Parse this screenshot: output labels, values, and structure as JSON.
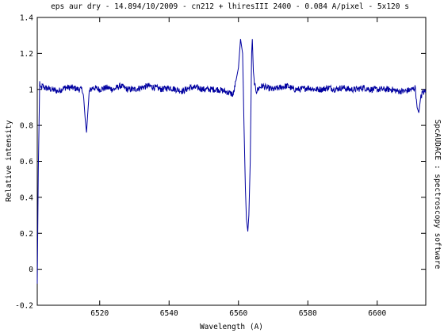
{
  "chart_data": {
    "type": "line",
    "title": "eps aur dry - 14.894/10/2009 - cn212 + lhiresIII 2400 - 0.084 A/pixel - 5x120 s",
    "xlabel": "Wavelength (A)",
    "ylabel": "Relative intensity",
    "right_label": "SpcAUDACE : spectroscopy software",
    "xlim": [
      6502,
      6614
    ],
    "ylim": [
      -0.2,
      1.4
    ],
    "x_ticks": [
      6520,
      6540,
      6560,
      6580,
      6600
    ],
    "x_tick_labels": [
      "6520",
      "6540",
      "6560",
      "6580",
      "6600"
    ],
    "y_ticks": [
      -0.2,
      0,
      0.2,
      0.4,
      0.6,
      0.8,
      1,
      1.2,
      1.4
    ],
    "y_tick_labels": [
      "-0.2",
      "0",
      "0.2",
      "0.4",
      "0.6",
      "0.8",
      "1",
      "1.2",
      "1.4"
    ],
    "grid": false,
    "line_color": "#0000a0",
    "series": [
      {
        "name": "",
        "x": [
          6502.0,
          6502.3,
          6502.7,
          6503.0,
          6503.5,
          6504.0,
          6506.0,
          6508.0,
          6510.0,
          6512.0,
          6514.0,
          6515.0,
          6515.4,
          6515.8,
          6516.2,
          6516.6,
          6517.0,
          6517.5,
          6518.0,
          6520.0,
          6522.0,
          6524.0,
          6526.0,
          6528.0,
          6530.0,
          6532.0,
          6534.0,
          6536.0,
          6538.0,
          6540.0,
          6542.0,
          6544.0,
          6546.0,
          6548.0,
          6550.0,
          6552.0,
          6554.0,
          6556.0,
          6557.5,
          6558.5,
          6559.3,
          6560.0,
          6560.6,
          6561.2,
          6561.6,
          6562.0,
          6562.3,
          6562.7,
          6563.0,
          6563.4,
          6563.8,
          6564.0,
          6564.3,
          6564.7,
          6565.2,
          6566.0,
          6567.0,
          6568.0,
          6570.0,
          6572.0,
          6574.0,
          6576.0,
          6578.0,
          6580.0,
          6582.0,
          6584.0,
          6586.0,
          6588.0,
          6590.0,
          6592.0,
          6594.0,
          6596.0,
          6598.0,
          6600.0,
          6602.0,
          6604.0,
          6606.0,
          6608.0,
          6610.0,
          6611.0,
          6611.5,
          6612.0,
          6612.5,
          6613.0,
          6614.0
        ],
        "y": [
          -0.08,
          0.55,
          1.04,
          1.0,
          1.02,
          1.01,
          1.0,
          0.99,
          1.01,
          1.01,
          1.0,
          1.0,
          0.95,
          0.84,
          0.76,
          0.88,
          0.99,
          1.0,
          1.01,
          1.0,
          1.01,
          1.0,
          1.02,
          1.0,
          1.0,
          1.01,
          1.02,
          1.01,
          1.0,
          1.01,
          1.0,
          0.99,
          1.01,
          1.01,
          1.0,
          1.0,
          1.0,
          0.99,
          0.98,
          0.97,
          1.05,
          1.12,
          1.28,
          1.2,
          0.8,
          0.45,
          0.28,
          0.21,
          0.3,
          0.6,
          1.2,
          1.28,
          1.1,
          1.02,
          0.99,
          1.01,
          1.02,
          1.01,
          1.0,
          1.01,
          1.02,
          1.0,
          1.0,
          1.01,
          1.0,
          1.0,
          1.01,
          1.0,
          1.01,
          1.0,
          1.0,
          1.01,
          1.0,
          1.0,
          1.0,
          1.0,
          0.99,
          0.99,
          1.0,
          1.01,
          0.9,
          0.87,
          0.95,
          0.98,
          0.99
        ]
      }
    ]
  }
}
